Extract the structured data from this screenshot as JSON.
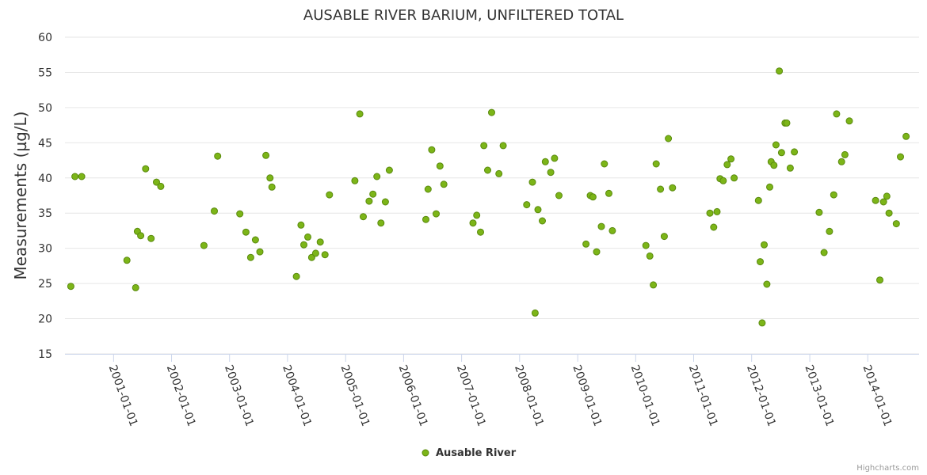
{
  "chart_data": {
    "type": "scatter",
    "title": "AUSABLE RIVER BARIUM, UNFILTERED TOTAL",
    "xlabel": "",
    "ylabel": "Measurements (µg/L)",
    "ylim": [
      15,
      60
    ],
    "yticks": [
      15,
      20,
      25,
      30,
      35,
      40,
      45,
      50,
      55,
      60
    ],
    "xlim": [
      "2000-03-01",
      "2014-11-20"
    ],
    "xticks": [
      "2001-01-01",
      "2002-01-01",
      "2003-01-01",
      "2004-01-01",
      "2005-01-01",
      "2006-01-01",
      "2007-01-01",
      "2008-01-01",
      "2009-01-01",
      "2010-01-01",
      "2011-01-01",
      "2012-01-01",
      "2013-01-01",
      "2014-01-01"
    ],
    "grid": true,
    "legend_position": "bottom-center",
    "series": [
      {
        "name": "Ausable River",
        "color": "#7cb518",
        "border_color": "#5a8a0e",
        "points": [
          [
            "2000-04-07",
            24.6
          ],
          [
            "2000-05-03",
            40.2
          ],
          [
            "2000-06-14",
            40.2
          ],
          [
            "2001-03-26",
            28.3
          ],
          [
            "2001-05-20",
            24.4
          ],
          [
            "2001-05-31",
            32.4
          ],
          [
            "2001-06-21",
            31.8
          ],
          [
            "2001-07-22",
            41.3
          ],
          [
            "2001-08-25",
            31.4
          ],
          [
            "2001-09-28",
            39.4
          ],
          [
            "2001-10-25",
            38.8
          ],
          [
            "2002-07-24",
            30.4
          ],
          [
            "2002-09-27",
            35.3
          ],
          [
            "2002-10-18",
            43.1
          ],
          [
            "2003-03-07",
            34.9
          ],
          [
            "2003-04-14",
            32.3
          ],
          [
            "2003-05-14",
            28.7
          ],
          [
            "2003-06-13",
            31.2
          ],
          [
            "2003-07-11",
            29.5
          ],
          [
            "2003-08-18",
            43.2
          ],
          [
            "2003-09-13",
            40.0
          ],
          [
            "2003-09-25",
            38.7
          ],
          [
            "2004-02-26",
            26.0
          ],
          [
            "2004-03-26",
            33.3
          ],
          [
            "2004-04-13",
            30.5
          ],
          [
            "2004-05-08",
            31.6
          ],
          [
            "2004-06-01",
            28.7
          ],
          [
            "2004-06-26",
            29.3
          ],
          [
            "2004-07-25",
            30.9
          ],
          [
            "2004-08-24",
            29.1
          ],
          [
            "2004-09-21",
            37.6
          ],
          [
            "2005-02-28",
            39.6
          ],
          [
            "2005-03-31",
            49.1
          ],
          [
            "2005-04-22",
            34.5
          ],
          [
            "2005-05-29",
            36.7
          ],
          [
            "2005-06-22",
            37.7
          ],
          [
            "2005-07-17",
            40.2
          ],
          [
            "2005-08-11",
            33.6
          ],
          [
            "2005-09-08",
            36.6
          ],
          [
            "2005-10-03",
            41.1
          ],
          [
            "2006-05-21",
            34.1
          ],
          [
            "2006-06-04",
            38.4
          ],
          [
            "2006-06-27",
            44.0
          ],
          [
            "2006-07-25",
            34.9
          ],
          [
            "2006-08-18",
            41.7
          ],
          [
            "2006-09-11",
            39.1
          ],
          [
            "2007-03-14",
            33.6
          ],
          [
            "2007-04-06",
            34.7
          ],
          [
            "2007-04-30",
            32.3
          ],
          [
            "2007-05-21",
            44.6
          ],
          [
            "2007-06-14",
            41.1
          ],
          [
            "2007-07-09",
            49.3
          ],
          [
            "2007-08-24",
            40.6
          ],
          [
            "2007-09-20",
            44.6
          ],
          [
            "2008-02-15",
            36.2
          ],
          [
            "2008-03-22",
            39.4
          ],
          [
            "2008-04-08",
            20.8
          ],
          [
            "2008-04-26",
            35.5
          ],
          [
            "2008-05-23",
            33.9
          ],
          [
            "2008-06-11",
            42.3
          ],
          [
            "2008-07-15",
            40.8
          ],
          [
            "2008-08-08",
            42.8
          ],
          [
            "2008-09-05",
            37.5
          ],
          [
            "2009-02-22",
            30.6
          ],
          [
            "2009-03-21",
            37.5
          ],
          [
            "2009-04-07",
            37.3
          ],
          [
            "2009-04-30",
            29.5
          ],
          [
            "2009-05-30",
            33.1
          ],
          [
            "2009-06-18",
            42.0
          ],
          [
            "2009-07-16",
            37.8
          ],
          [
            "2009-08-07",
            32.5
          ],
          [
            "2010-03-06",
            30.4
          ],
          [
            "2010-03-31",
            28.9
          ],
          [
            "2010-04-22",
            24.8
          ],
          [
            "2010-05-10",
            42.0
          ],
          [
            "2010-06-06",
            38.4
          ],
          [
            "2010-06-30",
            31.7
          ],
          [
            "2010-07-26",
            45.6
          ],
          [
            "2010-08-21",
            38.6
          ],
          [
            "2011-04-13",
            35.0
          ],
          [
            "2011-05-07",
            33.0
          ],
          [
            "2011-05-28",
            35.2
          ],
          [
            "2011-06-16",
            39.9
          ],
          [
            "2011-07-06",
            39.6
          ],
          [
            "2011-07-31",
            41.9
          ],
          [
            "2011-08-24",
            42.7
          ],
          [
            "2011-09-13",
            40.0
          ],
          [
            "2012-02-13",
            36.8
          ],
          [
            "2012-02-24",
            28.1
          ],
          [
            "2012-03-07",
            19.4
          ],
          [
            "2012-03-20",
            30.5
          ],
          [
            "2012-04-06",
            24.9
          ],
          [
            "2012-04-24",
            38.7
          ],
          [
            "2012-05-03",
            42.3
          ],
          [
            "2012-05-20",
            41.8
          ],
          [
            "2012-06-02",
            44.7
          ],
          [
            "2012-06-23",
            55.2
          ],
          [
            "2012-07-07",
            43.6
          ],
          [
            "2012-07-29",
            47.8
          ],
          [
            "2012-08-09",
            47.8
          ],
          [
            "2012-08-31",
            41.4
          ],
          [
            "2012-09-26",
            43.7
          ],
          [
            "2013-03-01",
            35.1
          ],
          [
            "2013-04-01",
            29.4
          ],
          [
            "2013-05-05",
            32.4
          ],
          [
            "2013-06-01",
            37.6
          ],
          [
            "2013-06-19",
            49.1
          ],
          [
            "2013-07-20",
            42.3
          ],
          [
            "2013-08-10",
            43.3
          ],
          [
            "2013-09-07",
            48.1
          ],
          [
            "2014-02-19",
            36.8
          ],
          [
            "2014-03-18",
            25.5
          ],
          [
            "2014-04-10",
            36.6
          ],
          [
            "2014-05-01",
            37.4
          ],
          [
            "2014-05-15",
            35.0
          ],
          [
            "2014-06-30",
            33.5
          ],
          [
            "2014-07-26",
            43.0
          ],
          [
            "2014-08-30",
            45.9
          ]
        ]
      }
    ]
  },
  "credits": "Highcharts.com"
}
